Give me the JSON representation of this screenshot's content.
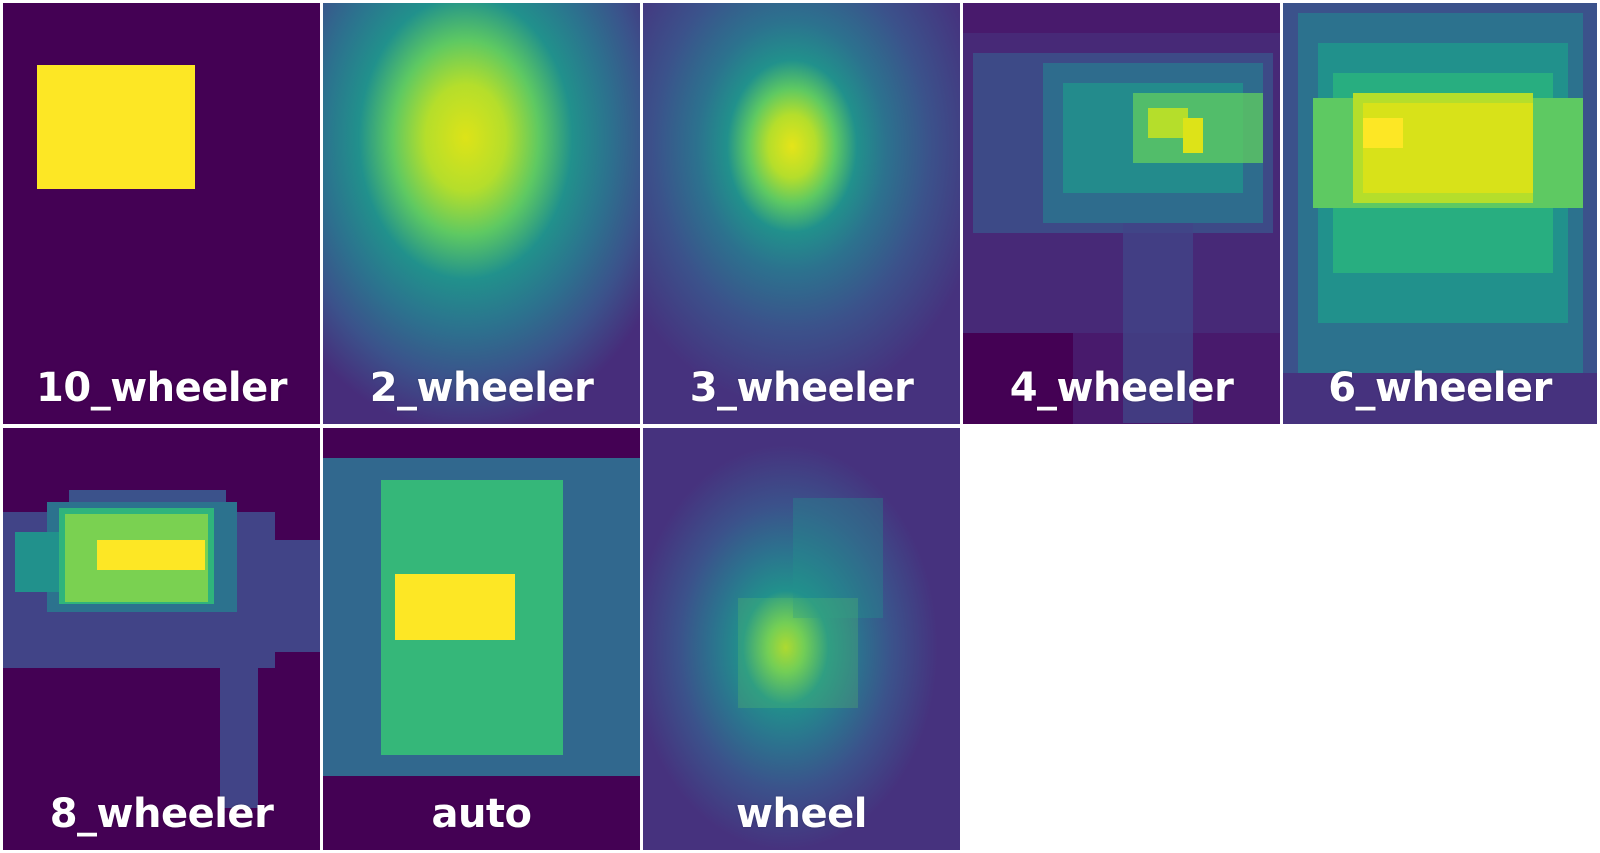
{
  "panels": [
    {
      "label": "10_wheeler"
    },
    {
      "label": "2_wheeler"
    },
    {
      "label": "3_wheeler"
    },
    {
      "label": "4_wheeler"
    },
    {
      "label": "6_wheeler"
    },
    {
      "label": "8_wheeler"
    },
    {
      "label": "auto"
    },
    {
      "label": "wheel"
    }
  ],
  "colors": {
    "background": "#440154",
    "low": "#3b528b",
    "mid": "#21918c",
    "high": "#5ec962",
    "peak": "#fde725"
  }
}
